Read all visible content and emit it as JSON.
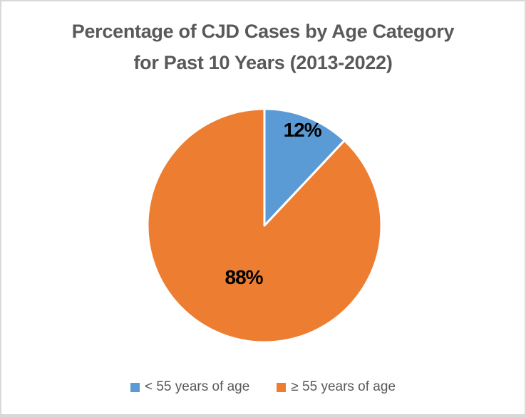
{
  "chart_data": {
    "type": "pie",
    "title": "Percentage of CJD Cases by Age Category for Past 10 Years (2013-2022)",
    "title_lines": [
      "Percentage of CJD Cases by Age Category",
      "for Past 10 Years (2013-2022)"
    ],
    "categories": [
      "< 55 years of age",
      "≥ 55 years of age"
    ],
    "values": [
      12,
      88
    ],
    "slice_labels": [
      "12%",
      "88%"
    ],
    "colors": [
      "#5B9BD5",
      "#ED7D31"
    ],
    "start_angle_deg": 0,
    "direction": "clockwise",
    "legend_position": "bottom",
    "title_color": "#595959",
    "legend_text_color": "#595959",
    "slice_label_color": "#000000",
    "slice_border_color": "#FFFFFF",
    "background_color": "#FFFFFF"
  }
}
